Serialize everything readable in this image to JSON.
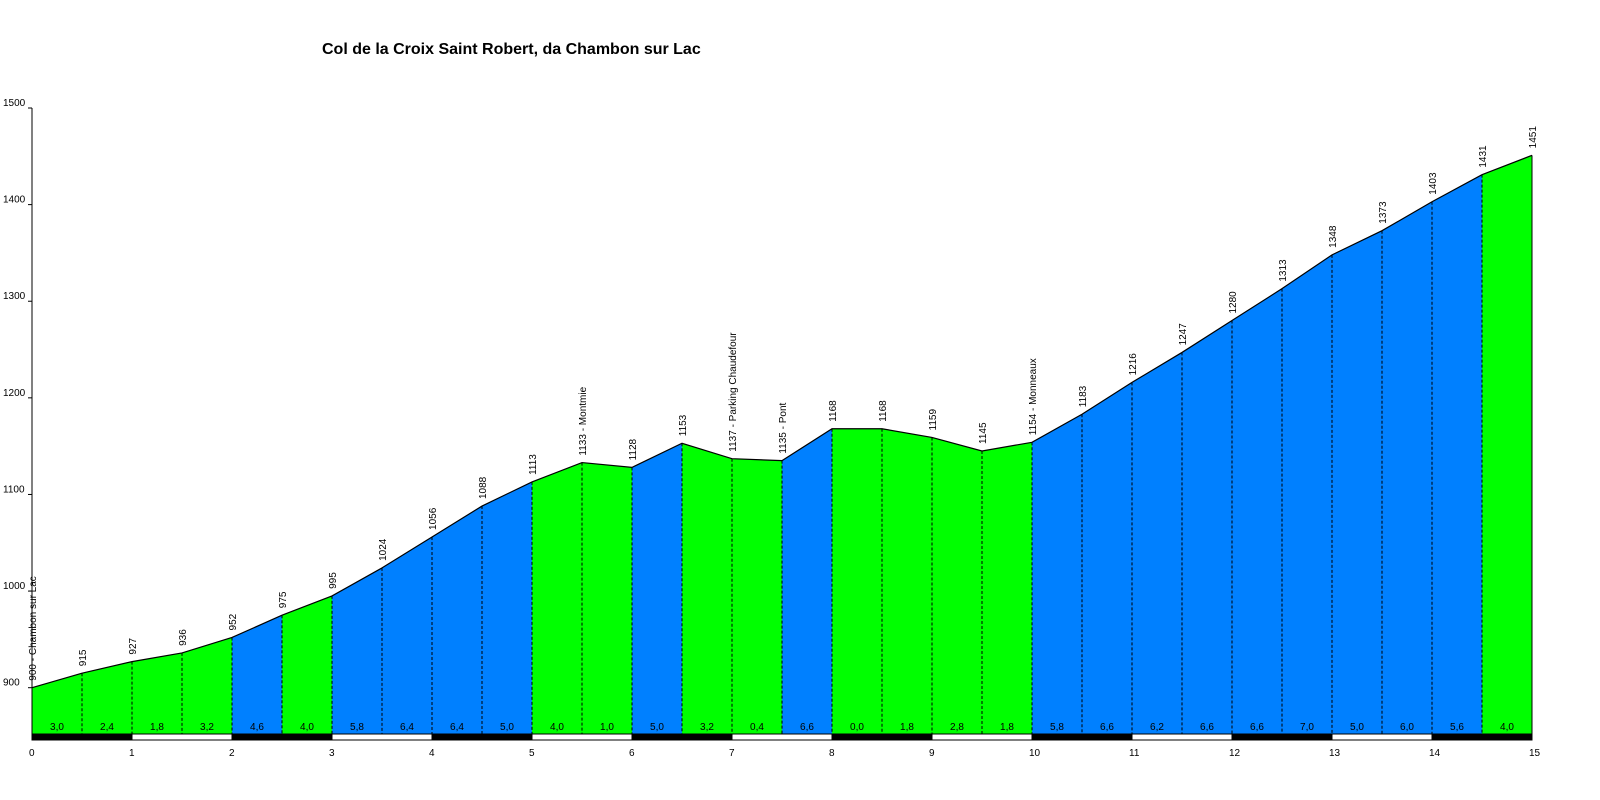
{
  "chart_data": {
    "type": "area",
    "title": "Col de la Croix Saint Robert, da Chambon sur Lac",
    "xlim": [
      0,
      15
    ],
    "ylim": [
      850,
      1500
    ],
    "x_ticks": [
      "0",
      "1",
      "2",
      "3",
      "4",
      "5",
      "6",
      "7",
      "8",
      "9",
      "10",
      "11",
      "12",
      "13",
      "14",
      "15"
    ],
    "y_ticks": [
      "900",
      "1000",
      "1100",
      "1200",
      "1300",
      "1400",
      "1500"
    ],
    "x": [
      0,
      0.5,
      1,
      1.5,
      2,
      2.5,
      3,
      3.5,
      4,
      4.5,
      5,
      5.5,
      6,
      6.5,
      7,
      7.5,
      8,
      8.5,
      9,
      9.5,
      10,
      10.5,
      11,
      11.5,
      12,
      12.5,
      13,
      13.5,
      14,
      14.5,
      15
    ],
    "elevations": [
      900,
      915,
      927,
      936,
      952,
      975,
      995,
      1024,
      1056,
      1088,
      1113,
      1133,
      1128,
      1153,
      1137,
      1135,
      1168,
      1168,
      1159,
      1145,
      1154,
      1183,
      1216,
      1247,
      1280,
      1313,
      1348,
      1373,
      1403,
      1431,
      1451
    ],
    "point_labels": [
      "900 - Chambon sur Lac",
      "915",
      "927",
      "936",
      "952",
      "975",
      "995",
      "1024",
      "1056",
      "1088",
      "1113",
      "1133 - Montmie",
      "1128",
      "1153",
      "1137 - Parking Chaudefour",
      "1135 - Pont",
      "1168",
      "1168",
      "1159",
      "1145",
      "1154 - Monneaux",
      "1183",
      "1216",
      "1247",
      "1280",
      "1313",
      "1348",
      "1373",
      "1403",
      "1431",
      "1451"
    ],
    "gradients": [
      "3,0",
      "2,4",
      "1,8",
      "3,2",
      "4,6",
      "4,0",
      "5,8",
      "6,4",
      "6,4",
      "5,0",
      "4,0",
      "1,0",
      "5,0",
      "3,2",
      "0,4",
      "6,6",
      "0,0",
      "1,8",
      "2,8",
      "1,8",
      "5,8",
      "6,6",
      "6,2",
      "6,6",
      "6,6",
      "7,0",
      "5,0",
      "6,0",
      "5,6",
      "4,0"
    ],
    "segment_colors": [
      "green",
      "green",
      "green",
      "green",
      "blue",
      "green",
      "blue",
      "blue",
      "blue",
      "blue",
      "green",
      "green",
      "blue",
      "green",
      "green",
      "blue",
      "green",
      "green",
      "green",
      "green",
      "blue",
      "blue",
      "blue",
      "blue",
      "blue",
      "blue",
      "blue",
      "blue",
      "blue",
      "green"
    ],
    "colors": {
      "green": "#00ff00",
      "blue": "#0080ff",
      "profile_line": "#000000",
      "axis": "#000000"
    }
  }
}
